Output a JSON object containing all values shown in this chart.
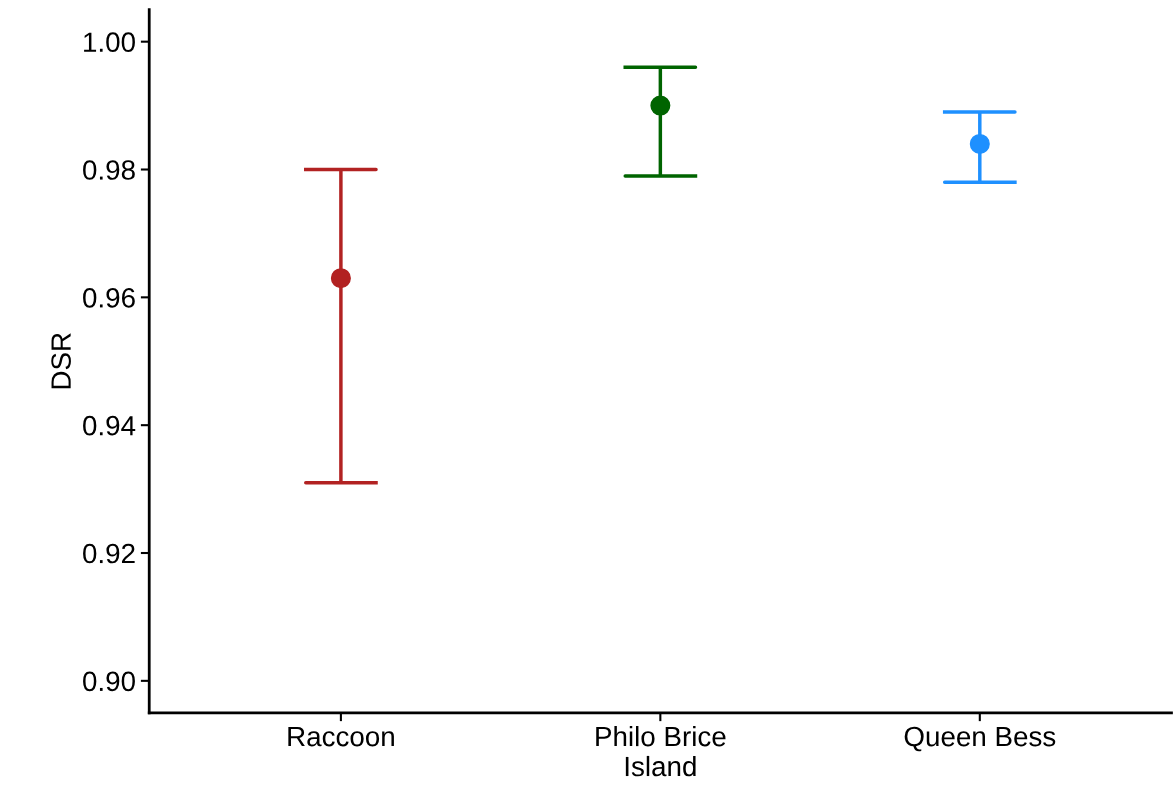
{
  "chart_data": {
    "type": "scatter",
    "ylabel": "DSR",
    "categories": [
      "Raccoon",
      "Philo Brice Island",
      "Queen Bess"
    ],
    "values": [
      0.963,
      0.99,
      0.984
    ],
    "errors": [
      [
        0.931,
        0.98
      ],
      [
        0.979,
        0.996
      ],
      [
        0.978,
        0.989
      ]
    ],
    "colors": [
      "#b22222",
      "#006400",
      "#1e90ff"
    ],
    "ylim": [
      0.895,
      1.005
    ],
    "yticks": [
      {
        "value": 0.9,
        "label": "0.90"
      },
      0.92,
      0.94,
      0.96,
      0.98,
      {
        "value": 1,
        "label": "1.00"
      }
    ],
    "marker": "circle",
    "grid": false
  }
}
